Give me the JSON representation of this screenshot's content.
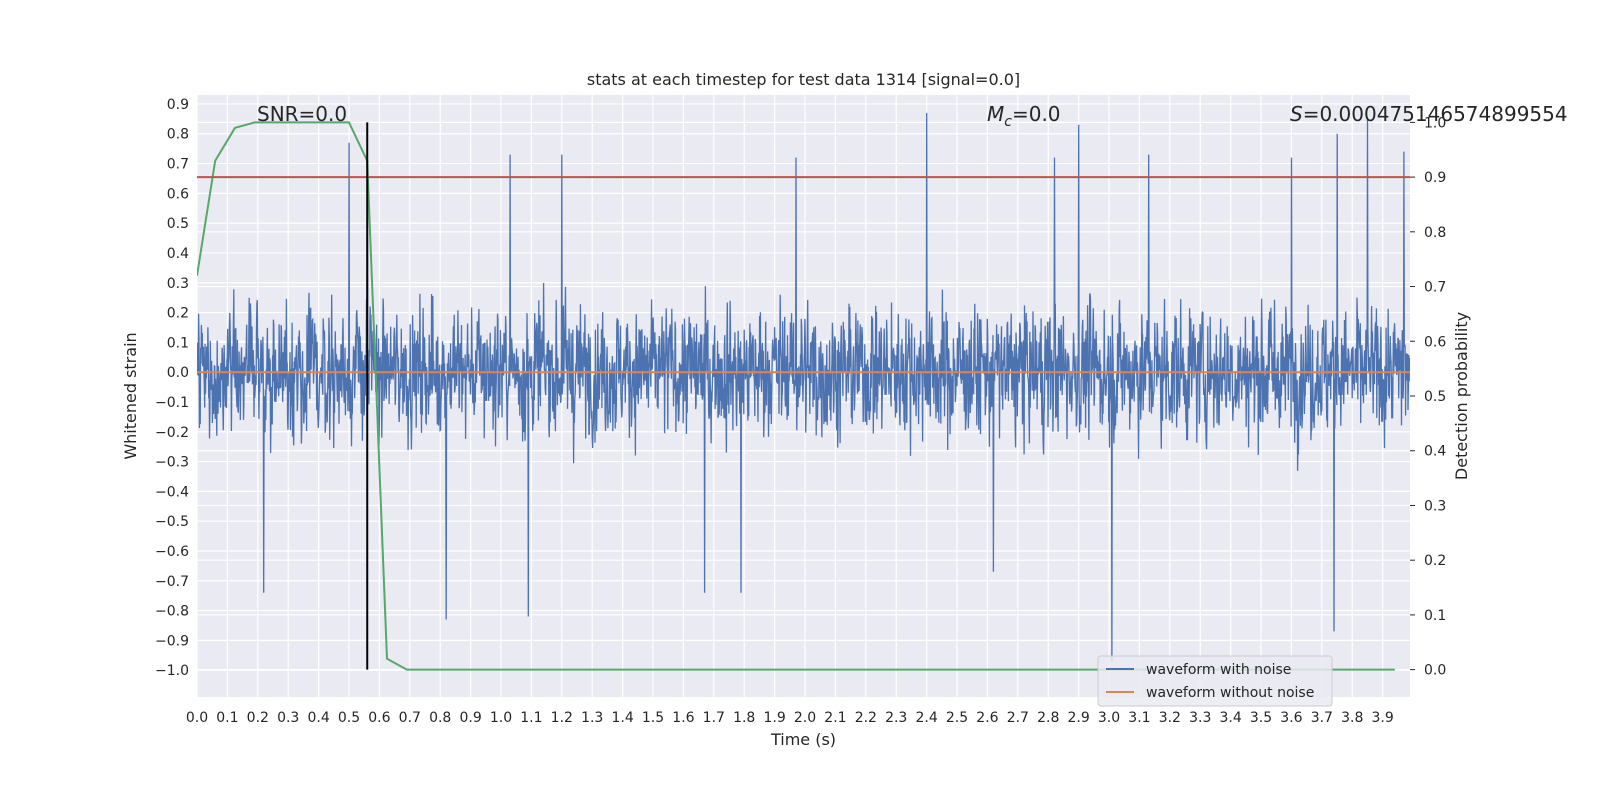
{
  "chart_data": {
    "type": "line",
    "title": "stats at each timestep for test data 1314 [signal=0.0]",
    "xlabel": "Time (s)",
    "ylabel": "Whitened strain",
    "y2label": "Detection probability",
    "xlim": [
      0.0,
      3.99
    ],
    "ylim": [
      -1.09,
      0.93
    ],
    "y2lim": [
      -0.05,
      1.05
    ],
    "xticks": [
      "0.0",
      "0.1",
      "0.2",
      "0.3",
      "0.4",
      "0.5",
      "0.6",
      "0.7",
      "0.8",
      "0.9",
      "1.0",
      "1.1",
      "1.2",
      "1.3",
      "1.4",
      "1.5",
      "1.6",
      "1.7",
      "1.8",
      "1.9",
      "2.0",
      "2.1",
      "2.2",
      "2.3",
      "2.4",
      "2.5",
      "2.6",
      "2.7",
      "2.8",
      "2.9",
      "3.0",
      "3.1",
      "3.2",
      "3.3",
      "3.4",
      "3.5",
      "3.6",
      "3.7",
      "3.8",
      "3.9"
    ],
    "yticks": [
      "0.9",
      "0.8",
      "0.7",
      "0.6",
      "0.5",
      "0.4",
      "0.3",
      "0.2",
      "0.1",
      "0.0",
      "−0.1",
      "−0.2",
      "−0.3",
      "−0.4",
      "−0.5",
      "−0.6",
      "−0.7",
      "−0.8",
      "−0.9",
      "−1.0"
    ],
    "y2ticks": [
      "1.0",
      "0.9",
      "0.8",
      "0.7",
      "0.6",
      "0.5",
      "0.4",
      "0.3",
      "0.2",
      "0.1",
      "0.0"
    ],
    "annotations": {
      "snr": "SNR=0.0",
      "mc_symbol": "M",
      "mc_subscript": "c",
      "mc_value": "=0.0",
      "s_symbol": "S",
      "s_value": "=0.000475146574899554"
    },
    "threshold_line": {
      "axis": "right",
      "value": 0.9,
      "color": "#c44e52"
    },
    "marker_line": {
      "x": 0.56,
      "color": "#000000"
    },
    "series": [
      {
        "name": "waveform with noise",
        "axis": "left",
        "color": "#4c72b0",
        "kind": "noise",
        "x_range": [
          0.0,
          3.99
        ],
        "typical_min": -0.5,
        "typical_max": 0.55,
        "spikes": [
          [
            0.5,
            0.77
          ],
          [
            0.56,
            0.75
          ],
          [
            1.03,
            0.73
          ],
          [
            1.2,
            0.73
          ],
          [
            1.97,
            0.72
          ],
          [
            2.4,
            0.87
          ],
          [
            2.82,
            0.72
          ],
          [
            2.9,
            0.83
          ],
          [
            3.13,
            0.73
          ],
          [
            3.6,
            0.72
          ],
          [
            3.75,
            0.8
          ],
          [
            3.85,
            0.85
          ],
          [
            3.97,
            0.74
          ],
          [
            0.22,
            -0.74
          ],
          [
            0.82,
            -0.83
          ],
          [
            1.09,
            -0.82
          ],
          [
            1.67,
            -0.74
          ],
          [
            1.79,
            -0.74
          ],
          [
            2.62,
            -0.67
          ],
          [
            3.01,
            -0.97
          ],
          [
            3.74,
            -0.87
          ]
        ]
      },
      {
        "name": "waveform without noise",
        "axis": "left",
        "color": "#dd8452",
        "x": [
          0.0,
          3.99
        ],
        "y": [
          0.0,
          0.0
        ]
      },
      {
        "name": "detection probability",
        "axis": "right",
        "color": "#55a868",
        "x": [
          0.0,
          0.06,
          0.125,
          0.19,
          0.25,
          0.31,
          0.375,
          0.44,
          0.5,
          0.56,
          0.625,
          0.69,
          0.75,
          1.0,
          1.5,
          2.0,
          2.5,
          3.0,
          3.5,
          3.94
        ],
        "y": [
          0.72,
          0.93,
          0.99,
          1.0,
          1.0,
          1.0,
          1.0,
          1.0,
          1.0,
          0.93,
          0.02,
          0.0,
          0.0,
          0.0,
          0.0,
          0.0,
          0.0,
          0.0,
          0.0,
          0.0
        ]
      }
    ],
    "legend": {
      "position": "lower-right",
      "entries": [
        {
          "label": "waveform with noise",
          "color": "#4c72b0"
        },
        {
          "label": "waveform without noise",
          "color": "#dd8452"
        }
      ]
    },
    "background_color": "#eaeaf2",
    "grid": true
  }
}
